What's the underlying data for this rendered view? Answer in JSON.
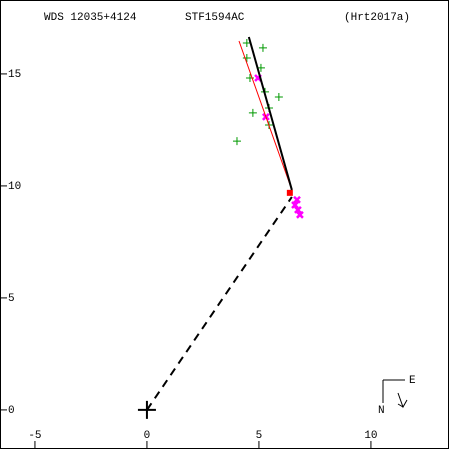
{
  "chart_data": {
    "type": "scatter",
    "header": {
      "left": "WDS 12035+4124",
      "center": "STF1594AC",
      "right": "(Hrt2017a)"
    },
    "compass": {
      "east": "E",
      "north": "N"
    },
    "xlim": [
      -6.56,
      13.53
    ],
    "ylim": [
      -1.79,
      18.3
    ],
    "xticks": [
      -5,
      0,
      5,
      10
    ],
    "yticks": [
      0,
      5,
      10,
      15
    ],
    "series": [
      {
        "color": "#009900",
        "mark": "cross",
        "x": [
          4.02,
          5.18,
          4.46,
          5.89,
          4.73,
          5.45,
          5.09,
          4.6,
          5.27,
          5.45,
          4.46
        ],
        "values": [
          12.0,
          16.16,
          16.38,
          13.97,
          13.26,
          12.72,
          15.27,
          14.82,
          14.2,
          13.48,
          15.71
        ]
      },
      {
        "color": "#ff00ff",
        "mark": "dot",
        "x": [
          4.96,
          5.31,
          6.7,
          6.74,
          6.83,
          6.61
        ],
        "values": [
          14.82,
          13.08,
          9.38,
          8.93,
          8.71,
          9.15
        ]
      },
      {
        "color": "#ff0000",
        "mark": "square",
        "x": [
          6.38
        ],
        "values": [
          9.69
        ]
      },
      {
        "color": "#ff0000",
        "mark": "line",
        "x": [
          4.11,
          6.47
        ],
        "values": [
          16.47,
          9.82
        ]
      },
      {
        "color": "#000000",
        "mark": "line",
        "x": [
          4.55,
          6.47
        ],
        "values": [
          16.65,
          9.82
        ]
      },
      {
        "color": "#000000",
        "mark": "dashed",
        "x": [
          0,
          6.47
        ],
        "values": [
          0,
          9.51
        ]
      }
    ]
  }
}
